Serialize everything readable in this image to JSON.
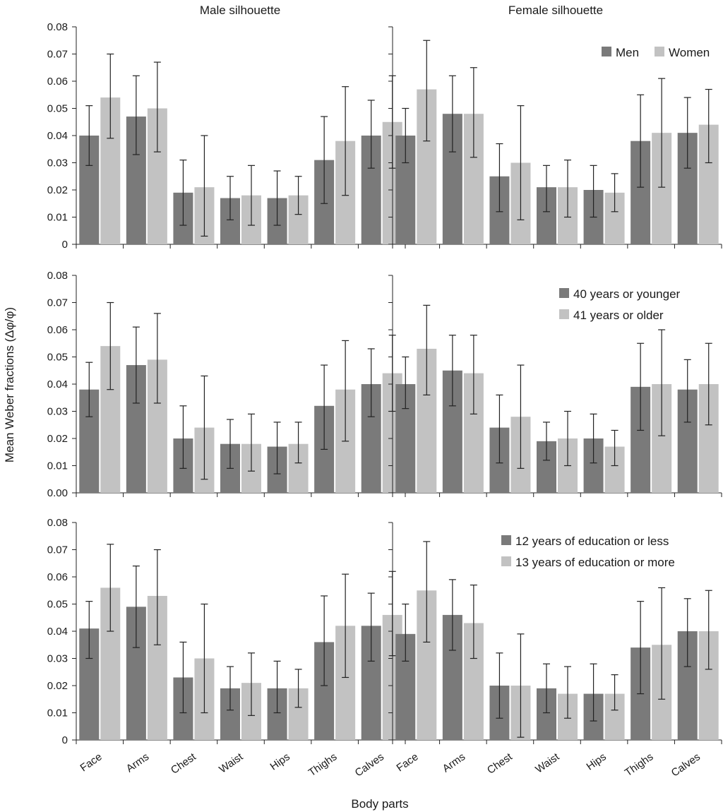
{
  "figure": {
    "ylabel": "Mean Weber fractions (Δφ/φ)",
    "xlabel": "Body parts",
    "column_titles": [
      "Male silhouette",
      "Female silhouette"
    ]
  },
  "colors": {
    "series_1": "#7a7a7a",
    "series_2": "#c2c2c2",
    "axis": "#222222",
    "error_bar": "#222222"
  },
  "chart_data": [
    {
      "type": "bar",
      "title": "Male silhouette",
      "row": 0,
      "col": 0,
      "categories": [
        "Face",
        "Arms",
        "Chest",
        "Waist",
        "Hips",
        "Thighs",
        "Calves"
      ],
      "ylim": [
        0,
        0.08
      ],
      "yticks": [
        "0",
        "0.01",
        "0.02",
        "0.03",
        "0.04",
        "0.05",
        "0.06",
        "0.07",
        "0.08"
      ],
      "legend_location": "top-right",
      "series": [
        {
          "name": "Men",
          "values": [
            0.04,
            0.047,
            0.019,
            0.017,
            0.017,
            0.031,
            0.04
          ],
          "err_low": [
            0.029,
            0.033,
            0.007,
            0.009,
            0.007,
            0.015,
            0.028
          ],
          "err_high": [
            0.051,
            0.062,
            0.031,
            0.025,
            0.027,
            0.047,
            0.053
          ]
        },
        {
          "name": "Women",
          "values": [
            0.054,
            0.05,
            0.021,
            0.018,
            0.018,
            0.038,
            0.045
          ],
          "err_low": [
            0.039,
            0.034,
            0.003,
            0.007,
            0.011,
            0.018,
            0.028
          ],
          "err_high": [
            0.07,
            0.067,
            0.04,
            0.029,
            0.025,
            0.058,
            0.062
          ]
        }
      ]
    },
    {
      "type": "bar",
      "title": "Female silhouette",
      "row": 0,
      "col": 1,
      "categories": [
        "Face",
        "Arms",
        "Chest",
        "Waist",
        "Hips",
        "Thighs",
        "Calves"
      ],
      "ylim": [
        0,
        0.08
      ],
      "yticks": [],
      "legend_location": "top-right",
      "legend": [
        "Men",
        "Women"
      ],
      "series": [
        {
          "name": "Men",
          "values": [
            0.04,
            0.048,
            0.025,
            0.021,
            0.02,
            0.038,
            0.041
          ],
          "err_low": [
            0.03,
            0.034,
            0.012,
            0.012,
            0.01,
            0.021,
            0.028
          ],
          "err_high": [
            0.05,
            0.062,
            0.037,
            0.029,
            0.029,
            0.055,
            0.054
          ]
        },
        {
          "name": "Women",
          "values": [
            0.057,
            0.048,
            0.03,
            0.021,
            0.019,
            0.041,
            0.044
          ],
          "err_low": [
            0.038,
            0.032,
            0.009,
            0.01,
            0.012,
            0.021,
            0.03
          ],
          "err_high": [
            0.075,
            0.065,
            0.051,
            0.031,
            0.026,
            0.061,
            0.057
          ]
        }
      ]
    },
    {
      "type": "bar",
      "title": "",
      "row": 1,
      "col": 0,
      "categories": [
        "Face",
        "Arms",
        "Chest",
        "Waist",
        "Hips",
        "Thighs",
        "Calves"
      ],
      "ylim": [
        0,
        0.08
      ],
      "yticks": [
        "0.00",
        "0.01",
        "0.02",
        "0.03",
        "0.04",
        "0.05",
        "0.06",
        "0.07",
        "0.08"
      ],
      "legend_location": "top-right",
      "series": [
        {
          "name": "40 years or younger",
          "values": [
            0.038,
            0.047,
            0.02,
            0.018,
            0.017,
            0.032,
            0.04
          ],
          "err_low": [
            0.028,
            0.033,
            0.009,
            0.009,
            0.007,
            0.016,
            0.028
          ],
          "err_high": [
            0.048,
            0.061,
            0.032,
            0.027,
            0.026,
            0.047,
            0.053
          ]
        },
        {
          "name": "41 years or older",
          "values": [
            0.054,
            0.049,
            0.024,
            0.018,
            0.018,
            0.038,
            0.044
          ],
          "err_low": [
            0.038,
            0.033,
            0.005,
            0.008,
            0.011,
            0.019,
            0.03
          ],
          "err_high": [
            0.07,
            0.066,
            0.043,
            0.029,
            0.026,
            0.056,
            0.058
          ]
        }
      ]
    },
    {
      "type": "bar",
      "title": "",
      "row": 1,
      "col": 1,
      "categories": [
        "Face",
        "Arms",
        "Chest",
        "Waist",
        "Hips",
        "Thighs",
        "Calves"
      ],
      "ylim": [
        0,
        0.08
      ],
      "yticks": [],
      "legend_location": "top-right",
      "legend": [
        "40 years or younger",
        "41 years or older"
      ],
      "series": [
        {
          "name": "40 years or younger",
          "values": [
            0.04,
            0.045,
            0.024,
            0.019,
            0.02,
            0.039,
            0.038
          ],
          "err_low": [
            0.031,
            0.032,
            0.011,
            0.012,
            0.011,
            0.023,
            0.026
          ],
          "err_high": [
            0.05,
            0.058,
            0.036,
            0.026,
            0.029,
            0.055,
            0.049
          ]
        },
        {
          "name": "41 years or older",
          "values": [
            0.053,
            0.044,
            0.028,
            0.02,
            0.017,
            0.04,
            0.04
          ],
          "err_low": [
            0.036,
            0.029,
            0.009,
            0.01,
            0.01,
            0.021,
            0.025
          ],
          "err_high": [
            0.069,
            0.058,
            0.047,
            0.03,
            0.023,
            0.06,
            0.055
          ]
        }
      ]
    },
    {
      "type": "bar",
      "title": "",
      "row": 2,
      "col": 0,
      "categories": [
        "Face",
        "Arms",
        "Chest",
        "Waist",
        "Hips",
        "Thighs",
        "Calves"
      ],
      "ylim": [
        0,
        0.08
      ],
      "yticks": [
        "0",
        "0.01",
        "0.02",
        "0.03",
        "0.04",
        "0.05",
        "0.06",
        "0.07",
        "0.08"
      ],
      "legend_location": "top-right",
      "series": [
        {
          "name": "12 years of education or less",
          "values": [
            0.041,
            0.049,
            0.023,
            0.019,
            0.019,
            0.036,
            0.042
          ],
          "err_low": [
            0.03,
            0.034,
            0.01,
            0.011,
            0.01,
            0.02,
            0.029
          ],
          "err_high": [
            0.051,
            0.064,
            0.036,
            0.027,
            0.029,
            0.053,
            0.054
          ]
        },
        {
          "name": "13 years of education or more",
          "values": [
            0.056,
            0.053,
            0.03,
            0.021,
            0.019,
            0.042,
            0.046
          ],
          "err_low": [
            0.04,
            0.035,
            0.01,
            0.009,
            0.012,
            0.023,
            0.031
          ],
          "err_high": [
            0.072,
            0.07,
            0.05,
            0.032,
            0.026,
            0.061,
            0.062
          ]
        }
      ]
    },
    {
      "type": "bar",
      "title": "",
      "row": 2,
      "col": 1,
      "categories": [
        "Face",
        "Arms",
        "Chest",
        "Waist",
        "Hips",
        "Thighs",
        "Calves"
      ],
      "ylim": [
        0,
        0.08
      ],
      "yticks": [],
      "legend_location": "top-right",
      "legend": [
        "12 years of education or less",
        "13 years of education or more"
      ],
      "series": [
        {
          "name": "12 years of education or less",
          "values": [
            0.039,
            0.046,
            0.02,
            0.019,
            0.017,
            0.034,
            0.04
          ],
          "err_low": [
            0.029,
            0.033,
            0.008,
            0.01,
            0.007,
            0.017,
            0.027
          ],
          "err_high": [
            0.05,
            0.059,
            0.032,
            0.028,
            0.028,
            0.051,
            0.052
          ]
        },
        {
          "name": "13 years of education or more",
          "values": [
            0.055,
            0.043,
            0.02,
            0.017,
            0.017,
            0.035,
            0.04
          ],
          "err_low": [
            0.036,
            0.03,
            0.001,
            0.008,
            0.011,
            0.015,
            0.026
          ],
          "err_high": [
            0.073,
            0.057,
            0.039,
            0.027,
            0.024,
            0.056,
            0.055
          ]
        }
      ]
    }
  ]
}
